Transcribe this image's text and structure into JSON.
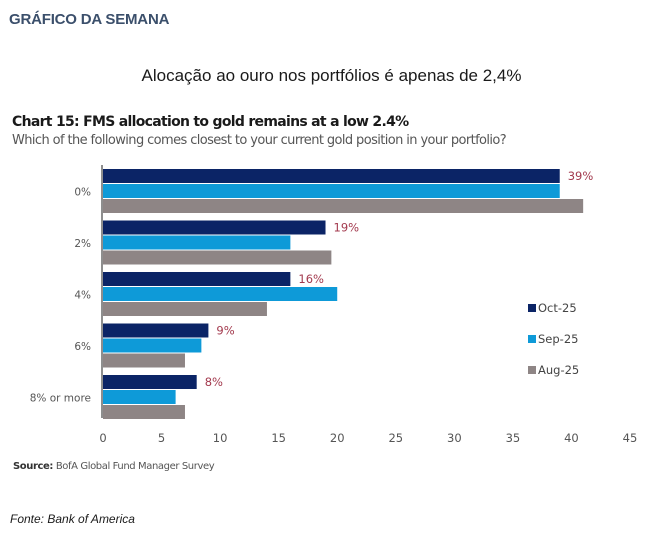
{
  "page": {
    "section_heading": "GRÁFICO DA SEMANA",
    "headline": "Alocação ao ouro nos portfólios é apenas de 2,4%",
    "source_label": "Source:",
    "source_text": "BofA Global Fund Manager Survey",
    "fonte": "Fonte: Bank of America"
  },
  "chart_data": {
    "type": "bar",
    "orientation": "horizontal",
    "title": "Chart 15: FMS allocation to gold remains at a low 2.4%",
    "subtitle": "Which of the following comes closest to your current gold position in your portfolio?",
    "xlabel": "",
    "ylabel": "",
    "categories": [
      "0%",
      "2%",
      "4%",
      "6%",
      "8% or more"
    ],
    "series": [
      {
        "name": "Oct-25",
        "color": "#0b2466",
        "values": [
          39,
          19,
          16,
          9,
          8
        ]
      },
      {
        "name": "Sep-25",
        "color": "#0e9ad8",
        "values": [
          39,
          16,
          20,
          8.4,
          6.2
        ]
      },
      {
        "name": "Aug-25",
        "color": "#8e8585",
        "values": [
          41,
          19.5,
          14,
          7,
          7
        ]
      }
    ],
    "data_labels": {
      "series": "Oct-25",
      "labels": [
        "39%",
        "19%",
        "16%",
        "9%",
        "8%"
      ],
      "color": "#a33a4e"
    },
    "xlim": [
      0,
      45
    ],
    "xticks": [
      0,
      5,
      10,
      15,
      20,
      25,
      30,
      35,
      40,
      45
    ],
    "grid": false,
    "legend": "right"
  }
}
